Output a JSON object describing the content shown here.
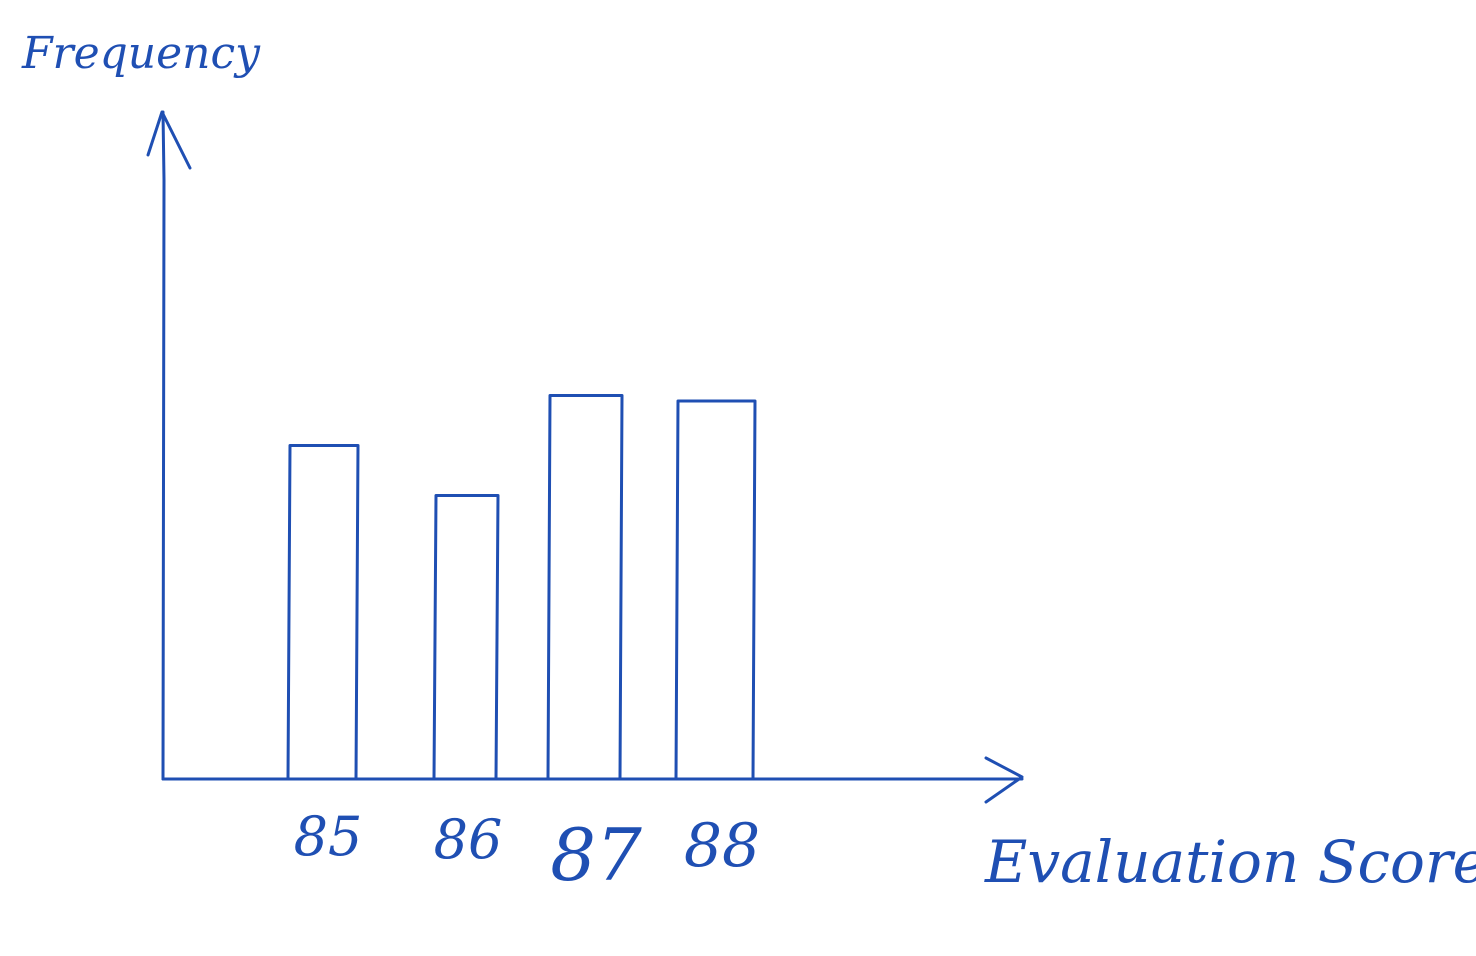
{
  "chart_data": {
    "type": "bar",
    "title": "",
    "xlabel": "Evaluation Score",
    "ylabel": "Frequency",
    "categories": [
      "85",
      "86",
      "87",
      "88"
    ],
    "values": [
      6.0,
      5.1,
      6.9,
      6.8
    ],
    "ylim": [
      0,
      12
    ],
    "grid": false,
    "legend": "none"
  },
  "colors": {
    "ink": "#1f4fb3",
    "background": "#ffffff"
  }
}
